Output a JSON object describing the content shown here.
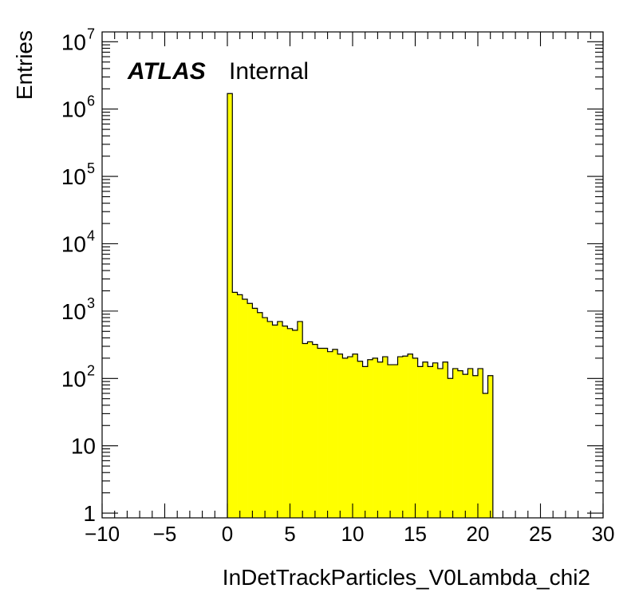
{
  "chart_data": {
    "type": "bar",
    "title": "",
    "atlas_label": "ATLAS",
    "atlas_status": "Internal",
    "xlabel": "InDetTrackParticles_V0Lambda_chi2",
    "ylabel": "Entries",
    "xlim": [
      -10,
      30
    ],
    "ylim": [
      0.85,
      14000000
    ],
    "log_y": true,
    "grid": false,
    "fill_color": "#ffff00",
    "line_color": "#000000",
    "x_ticks": [
      {
        "value": -10,
        "label": "−10"
      },
      {
        "value": -5,
        "label": "−5"
      },
      {
        "value": 0,
        "label": "0"
      },
      {
        "value": 5,
        "label": "5"
      },
      {
        "value": 10,
        "label": "10"
      },
      {
        "value": 15,
        "label": "15"
      },
      {
        "value": 20,
        "label": "20"
      },
      {
        "value": 25,
        "label": "25"
      },
      {
        "value": 30,
        "label": "30"
      }
    ],
    "y_ticks": [
      {
        "value": 1,
        "base": "1",
        "exp": ""
      },
      {
        "value": 10,
        "base": "10",
        "exp": ""
      },
      {
        "value": 100,
        "base": "10",
        "exp": "2"
      },
      {
        "value": 1000,
        "base": "10",
        "exp": "3"
      },
      {
        "value": 10000,
        "base": "10",
        "exp": "4"
      },
      {
        "value": 100000,
        "base": "10",
        "exp": "5"
      },
      {
        "value": 1000000,
        "base": "10",
        "exp": "6"
      },
      {
        "value": 10000000,
        "base": "10",
        "exp": "7"
      }
    ],
    "bin_start": 0,
    "bin_width": 0.4,
    "values": [
      1700000,
      1900,
      1750,
      1500,
      1300,
      1100,
      950,
      800,
      700,
      620,
      700,
      600,
      550,
      520,
      700,
      330,
      350,
      320,
      280,
      280,
      250,
      270,
      230,
      200,
      210,
      230,
      180,
      150,
      190,
      200,
      175,
      210,
      160,
      160,
      210,
      215,
      230,
      200,
      150,
      175,
      150,
      170,
      140,
      175,
      100,
      140,
      130,
      115,
      140,
      110,
      140,
      60,
      110
    ]
  }
}
